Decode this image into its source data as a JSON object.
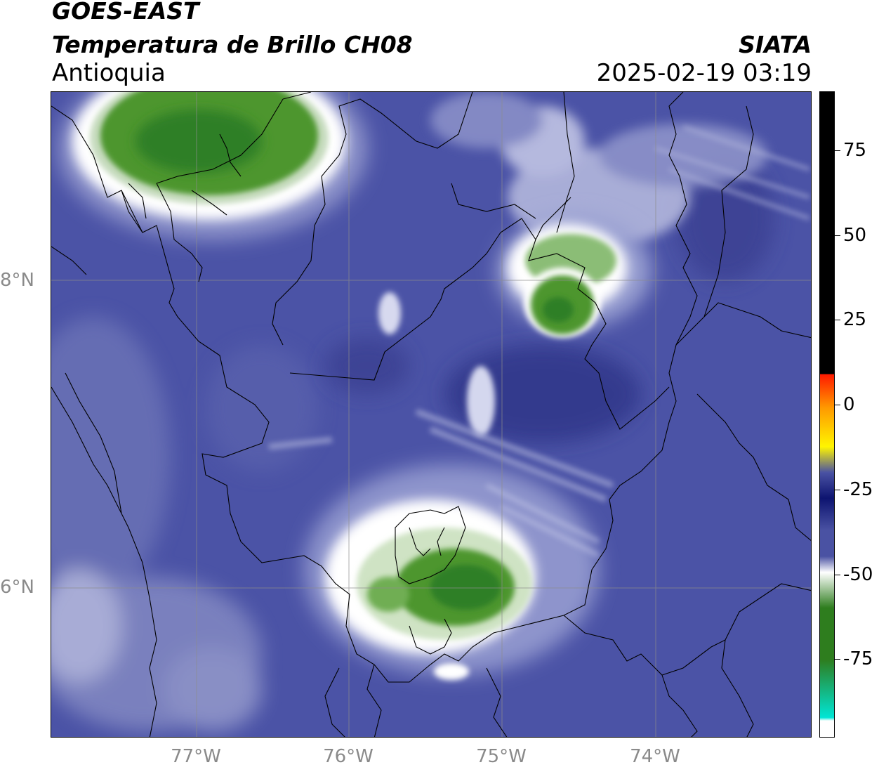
{
  "header": {
    "satellite": "GOES-EAST",
    "product": "Temperatura de Brillo CH08",
    "region": "Antioquia",
    "brand": "SIATA",
    "timestamp": "2025-02-19 03:19"
  },
  "map": {
    "latitude_labels": [
      "8°N",
      "6°N"
    ],
    "longitude_labels": [
      "77°W",
      "76°W",
      "75°W",
      "74°W"
    ],
    "colors": {
      "background_cold_band": "#4a52a3",
      "land_dark": "#3b428f",
      "cloud_white": "#f4f5fb",
      "cloud_green": "#3f8a2a",
      "gridline": "#8c8c8c",
      "boundary": "#000000"
    }
  },
  "colorbar": {
    "tick_labels": [
      "75",
      "50",
      "25",
      "0",
      "-25",
      "-50",
      "-75"
    ],
    "colors": {
      "warm": "#000000",
      "red": "#ff1a00",
      "orange": "#ff9a00",
      "yellow": "#fff500",
      "dark_navy": "#0d1470",
      "blue": "#4a52a3",
      "white": "#ffffff",
      "green": "#2e7d1e",
      "cyan": "#00e5d5"
    }
  }
}
